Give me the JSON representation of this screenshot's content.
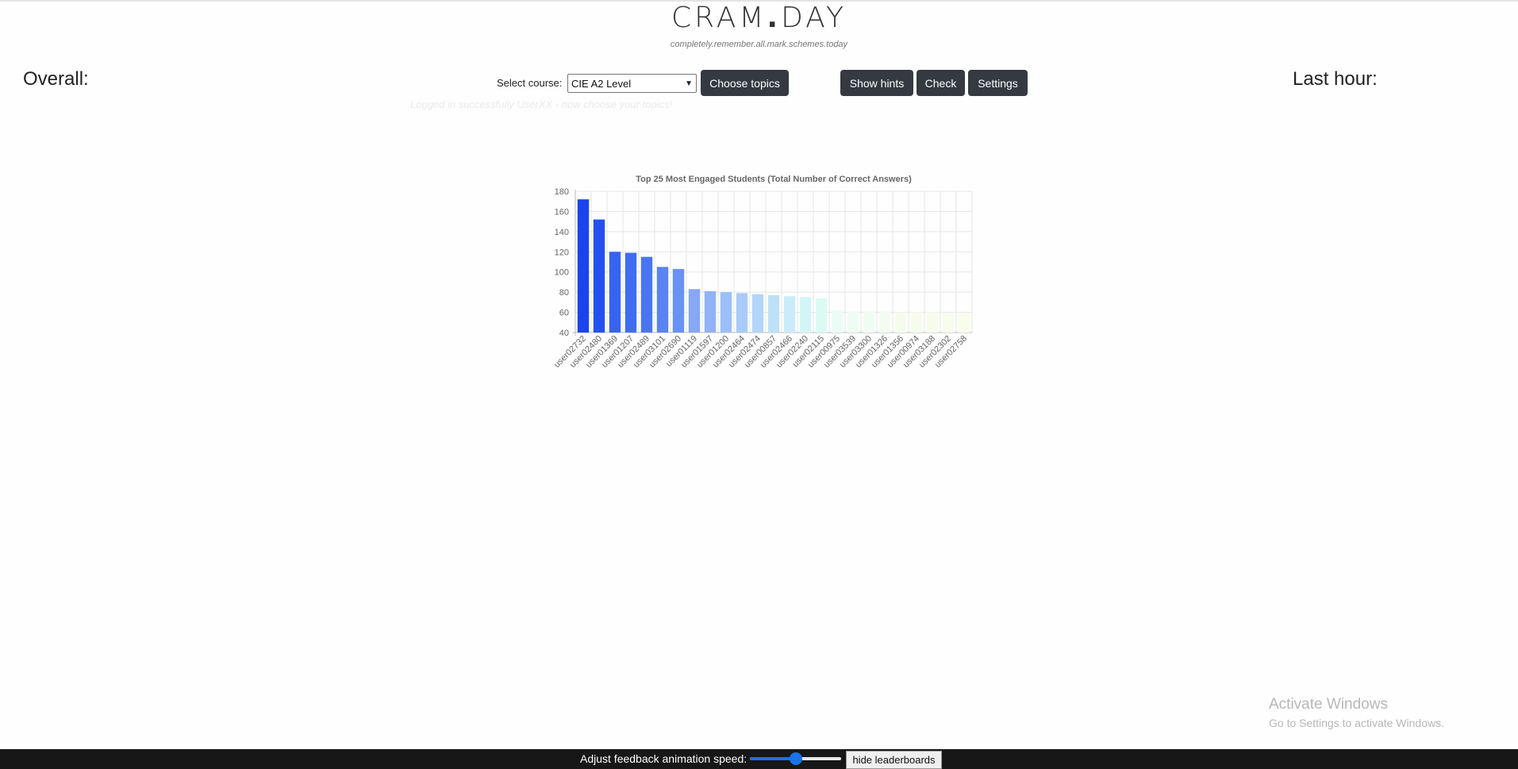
{
  "header": {
    "logo_left": "CRAM",
    "logo_dot": ".",
    "logo_right": "DAY",
    "tagline": "completely.remember.all.mark.schemes.today"
  },
  "stats": {
    "overall_label": "Overall:",
    "last_hour_label": "Last hour:"
  },
  "controls": {
    "course_label": "Select course:",
    "course_selected": "CIE A2 Level",
    "choose_topics_label": "Choose topics",
    "show_hints_label": "Show hints",
    "check_label": "Check",
    "settings_label": "Settings"
  },
  "status": {
    "login_message": "Logged in successfully UserXX - now choose your topics!"
  },
  "chart_data": {
    "type": "bar",
    "title": "Top 25 Most Engaged Students (Total Number of Correct Answers)",
    "xlabel": "",
    "ylabel": "",
    "ylim": [
      40,
      180
    ],
    "yticks": [
      40,
      60,
      80,
      100,
      120,
      140,
      160,
      180
    ],
    "grid": true,
    "categories": [
      "user02732",
      "user02480",
      "user01369",
      "user01207",
      "user02489",
      "user03101",
      "user02690",
      "user01119",
      "user01597",
      "user01200",
      "user02464",
      "user02474",
      "user00857",
      "user02466",
      "user02240",
      "user02115",
      "user00975",
      "user03539",
      "user03300",
      "user01326",
      "user01356",
      "user00974",
      "user03188",
      "user02302",
      "user02758"
    ],
    "values": [
      172,
      152,
      120,
      119,
      115,
      105,
      103,
      83,
      81,
      80,
      79,
      78,
      77,
      76,
      75,
      74,
      62,
      61,
      61,
      61,
      60,
      60,
      60,
      59,
      59
    ],
    "colors": [
      "#1b44ef",
      "#2450f0",
      "#3763f0",
      "#3f6cf1",
      "#4a75f2",
      "#5a83f3",
      "#6a91f4",
      "#86a8f5",
      "#91b3f6",
      "#9dbff7",
      "#a8cbf7",
      "#b2d5f8",
      "#bde1f8",
      "#c9ecf8",
      "#d3f5f6",
      "#dcfaf4",
      "#eafcf5",
      "#eefcf4",
      "#f0fcf2",
      "#f2fcf0",
      "#f4fcee",
      "#f5fced",
      "#f6fcec",
      "#f7fceb",
      "#f8fcea"
    ]
  },
  "windows_notice": {
    "title": "Activate Windows",
    "subtitle": "Go to Settings to activate Windows."
  },
  "footer": {
    "speed_label": "Adjust feedback animation speed:",
    "speed_value": 0.5,
    "hide_button_label": "hide leaderboards"
  }
}
